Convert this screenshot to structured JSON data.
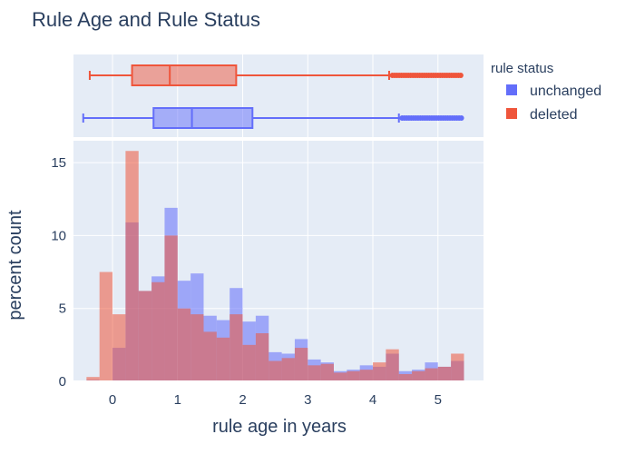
{
  "chart_data": {
    "type": "histogram",
    "title": "Rule Age and Rule Status",
    "xlabel": "rule age in years",
    "ylabel": "percent count",
    "xlim": [
      -0.6,
      5.7
    ],
    "ylim": [
      0,
      16.5
    ],
    "x_ticks": [
      0,
      1,
      2,
      3,
      4,
      5
    ],
    "y_ticks": [
      0,
      5,
      10,
      15
    ],
    "bin_width": 0.2,
    "bin_starts": [
      -0.4,
      -0.2,
      0.0,
      0.2,
      0.4,
      0.6,
      0.8,
      1.0,
      1.2,
      1.4,
      1.6,
      1.8,
      2.0,
      2.2,
      2.4,
      2.6,
      2.8,
      3.0,
      3.2,
      3.4,
      3.6,
      3.8,
      4.0,
      4.2,
      4.4,
      4.6,
      4.8,
      5.0,
      5.2
    ],
    "legend_title": "rule status",
    "legend_position": "top-right",
    "grid": true,
    "series": [
      {
        "name": "unchanged",
        "color": "#636efa",
        "values": [
          0.1,
          0,
          2.3,
          10.9,
          6.2,
          7.2,
          11.9,
          6.9,
          7.4,
          4.5,
          4.2,
          6.4,
          4.1,
          4.5,
          2.0,
          1.9,
          2.9,
          1.5,
          1.3,
          0.7,
          0.8,
          1.1,
          1.0,
          1.9,
          0.7,
          0.8,
          1.3,
          1.0,
          1.4
        ],
        "box": {
          "lower_fence": -0.45,
          "q1": 0.63,
          "median": 1.22,
          "q3": 2.15,
          "upper_fence": 4.4,
          "outliers_from": 4.45,
          "outliers_to": 5.38
        }
      },
      {
        "name": "deleted",
        "color": "#ef553b",
        "values": [
          0.3,
          7.5,
          4.6,
          15.8,
          6.2,
          6.8,
          10.0,
          5.0,
          4.6,
          3.4,
          3.0,
          4.6,
          2.5,
          3.3,
          1.4,
          1.6,
          2.3,
          1.1,
          1.2,
          0.6,
          0.7,
          0.8,
          1.3,
          2.2,
          0.5,
          0.7,
          0.9,
          1.0,
          1.9
        ],
        "box": {
          "lower_fence": -0.35,
          "q1": 0.3,
          "median": 0.88,
          "q3": 1.9,
          "upper_fence": 4.25,
          "outliers_from": 4.3,
          "outliers_to": 5.38
        }
      }
    ]
  }
}
